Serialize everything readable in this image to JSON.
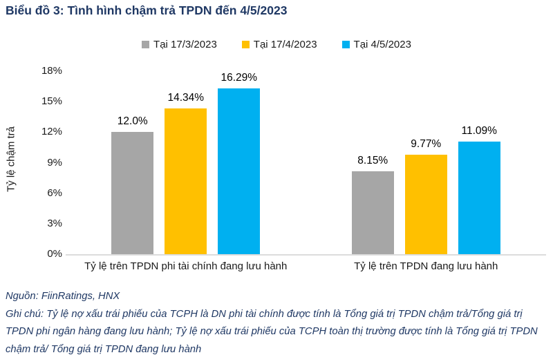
{
  "title": "Biểu đồ 3: Tình hình chậm trả TPDN đến 4/5/2023",
  "colors": {
    "title_text": "#1F3864",
    "note_text": "#1F3864",
    "axis_line": "#dcdcdc",
    "series_gray": "#A6A6A6",
    "series_yellow": "#FFC000",
    "series_blue": "#00B0F0"
  },
  "chart_data": {
    "type": "bar",
    "categories": [
      "Tỷ lệ trên TPDN phi tài chính đang lưu hành",
      "Tỷ lệ trên TPDN đang lưu hành"
    ],
    "series": [
      {
        "name": "Tại 17/3/2023",
        "color": "#A6A6A6",
        "values": [
          12.0,
          8.15
        ],
        "labels": [
          "12.0%",
          "8.15%"
        ]
      },
      {
        "name": "Tại 17/4/2023",
        "color": "#FFC000",
        "values": [
          14.34,
          9.77
        ],
        "labels": [
          "14.34%",
          "9.77%"
        ]
      },
      {
        "name": "Tại 4/5/2023",
        "color": "#00B0F0",
        "values": [
          16.29,
          11.09
        ],
        "labels": [
          "16.29%",
          "11.09%"
        ]
      }
    ],
    "xlabel": "",
    "ylabel": "Tỷ lệ chậm trả",
    "ylim": [
      0,
      18
    ],
    "yticks": [
      "0%",
      "3%",
      "6%",
      "9%",
      "12%",
      "15%",
      "18%"
    ],
    "grid": false,
    "legend_position": "top"
  },
  "footer": {
    "source": "Nguồn: FiinRatings, HNX",
    "note": "Ghi chú: Tỷ lệ nợ xấu trái phiếu của TCPH là DN phi tài chính được tính là Tổng giá trị TPDN chậm trả/Tổng giá trị TPDN phi ngân hàng đang lưu hành; Tỷ lệ nợ xấu trái phiếu của TCPH toàn thị trường được tính là Tổng giá trị TPDN chậm trả/ Tổng giá trị TPDN đang lưu hành"
  }
}
